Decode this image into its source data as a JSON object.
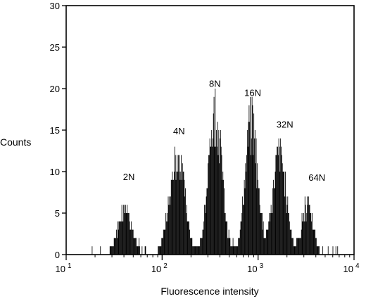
{
  "chart_data": {
    "type": "bar",
    "title": "",
    "xlabel": "Fluorescence intensity",
    "ylabel": "Counts",
    "x_scale": "log",
    "xlim": [
      10,
      10000
    ],
    "ylim": [
      0,
      30
    ],
    "grid": false,
    "legend": "none",
    "yticks": [
      0,
      5,
      10,
      15,
      20,
      25,
      30
    ],
    "xticks": [
      {
        "value": 10,
        "base": "10",
        "exp": "1"
      },
      {
        "value": 100,
        "base": "10",
        "exp": "2"
      },
      {
        "value": 1000,
        "base": "10",
        "exp": "3"
      },
      {
        "value": 10000,
        "base": "10",
        "exp": "4"
      }
    ],
    "annotations": [
      {
        "text": "2N",
        "x": 45,
        "y": 9
      },
      {
        "text": "4N",
        "x": 150,
        "y": 14.5
      },
      {
        "text": "8N",
        "x": 355,
        "y": 20.2
      },
      {
        "text": "16N",
        "x": 880,
        "y": 19.1
      },
      {
        "text": "32N",
        "x": 1900,
        "y": 15.3
      },
      {
        "text": "64N",
        "x": 4100,
        "y": 8.9
      }
    ],
    "series": [
      {
        "peaks": [
          {
            "center": 41,
            "height": 6,
            "width_decades": 0.07
          },
          {
            "center": 143,
            "height": 12.2,
            "width_decades": 0.08
          },
          {
            "center": 355,
            "height": 17.8,
            "width_decades": 0.07
          },
          {
            "center": 845,
            "height": 16.8,
            "width_decades": 0.065
          },
          {
            "center": 1660,
            "height": 12.7,
            "width_decades": 0.07
          },
          {
            "center": 3250,
            "height": 6.2,
            "width_decades": 0.055
          }
        ],
        "x_range": [
          17,
          6800
        ]
      }
    ]
  }
}
